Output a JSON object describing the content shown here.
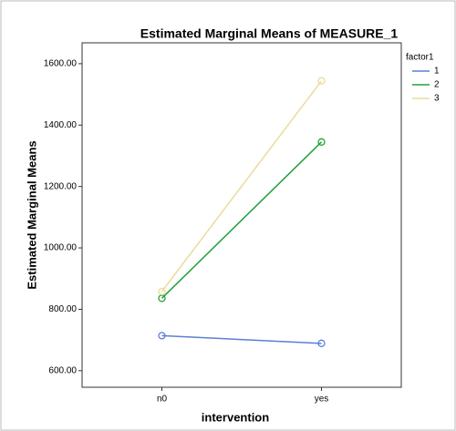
{
  "chart_data": {
    "type": "line",
    "title": "Estimated Marginal Means of MEASURE_1",
    "x_label": "intervention",
    "y_label": "Estimated Marginal Means",
    "legend_title": "factor1",
    "categories": [
      "n0",
      "yes"
    ],
    "series": [
      {
        "name": "1",
        "color": "#5a7fd8",
        "values": [
          714,
          689
        ]
      },
      {
        "name": "2",
        "color": "#22a03a",
        "values": [
          836,
          1345
        ]
      },
      {
        "name": "3",
        "color": "#eadc9c",
        "values": [
          858,
          1544
        ]
      }
    ],
    "ylim": [
      546,
      1668
    ],
    "yticks": [
      {
        "value": 600,
        "label": "600.00"
      },
      {
        "value": 800,
        "label": "800.00"
      },
      {
        "value": 1000,
        "label": "1000.00"
      },
      {
        "value": 1200,
        "label": "1200.00"
      },
      {
        "value": 1400,
        "label": "1400.00"
      },
      {
        "value": 1600,
        "label": "1600.00"
      }
    ]
  }
}
